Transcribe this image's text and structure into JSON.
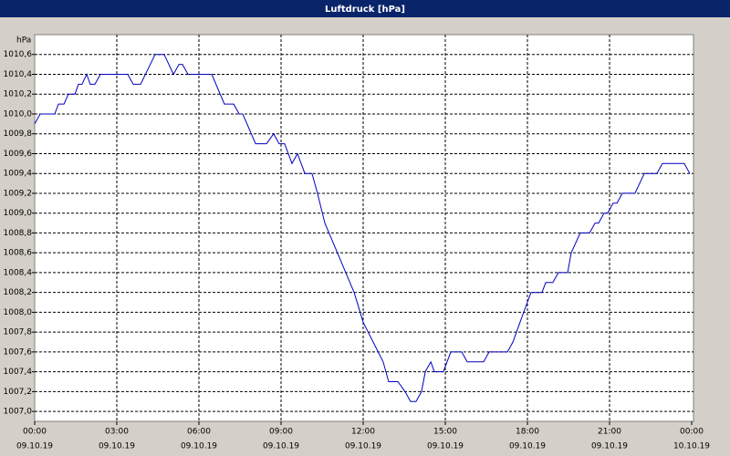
{
  "chart_data": {
    "type": "line",
    "title": "Luftdruck [hPa]",
    "y_unit": "hPa",
    "color": "#0000c0",
    "grid": true,
    "x": [
      0,
      0.2,
      0.73,
      0.87,
      1.07,
      1.23,
      1.47,
      1.6,
      1.73,
      1.9,
      2.03,
      2.2,
      2.4,
      3.4,
      3.6,
      3.87,
      4.4,
      4.73,
      5.07,
      5.27,
      5.4,
      5.6,
      6.47,
      6.93,
      7.27,
      7.47,
      7.6,
      8.07,
      8.47,
      8.73,
      8.93,
      9.13,
      9.4,
      9.6,
      9.87,
      10.13,
      10.33,
      10.6,
      11.67,
      12,
      12.73,
      12.93,
      13.27,
      13.53,
      13.73,
      13.93,
      14.13,
      14.27,
      14.47,
      14.6,
      14.93,
      15.2,
      15.6,
      15.8,
      16.4,
      16.6,
      17.27,
      17.47,
      17.73,
      18.13,
      18.53,
      18.67,
      18.93,
      19.13,
      19.47,
      19.6,
      19.93,
      20.27,
      20.47,
      20.6,
      20.8,
      20.93,
      21.13,
      21.27,
      21.47,
      21.93,
      22.27,
      22.73,
      22.93,
      23.73,
      23.93
    ],
    "values": [
      1009.9,
      1010.0,
      1010.0,
      1010.1,
      1010.1,
      1010.2,
      1010.2,
      1010.3,
      1010.3,
      1010.4,
      1010.3,
      1010.3,
      1010.4,
      1010.4,
      1010.3,
      1010.3,
      1010.6,
      1010.6,
      1010.4,
      1010.5,
      1010.5,
      1010.4,
      1010.4,
      1010.1,
      1010.1,
      1010.0,
      1010.0,
      1009.7,
      1009.7,
      1009.8,
      1009.7,
      1009.7,
      1009.5,
      1009.6,
      1009.4,
      1009.4,
      1009.2,
      1008.9,
      1008.2,
      1007.9,
      1007.5,
      1007.3,
      1007.3,
      1007.2,
      1007.1,
      1007.1,
      1007.2,
      1007.4,
      1007.5,
      1007.4,
      1007.4,
      1007.6,
      1007.6,
      1007.5,
      1007.5,
      1007.6,
      1007.6,
      1007.7,
      1007.9,
      1008.2,
      1008.2,
      1008.3,
      1008.3,
      1008.4,
      1008.4,
      1008.6,
      1008.8,
      1008.8,
      1008.9,
      1008.9,
      1009.0,
      1009.0,
      1009.1,
      1009.1,
      1009.2,
      1009.2,
      1009.4,
      1009.4,
      1009.5,
      1009.5,
      1009.4
    ],
    "xlim": [
      0,
      24
    ],
    "xticks": [
      {
        "value": 0,
        "label": "00:00"
      },
      {
        "value": 3,
        "label": "03:00"
      },
      {
        "value": 6,
        "label": "06:00"
      },
      {
        "value": 9,
        "label": "09:00"
      },
      {
        "value": 12,
        "label": "12:00"
      },
      {
        "value": 15,
        "label": "15:00"
      },
      {
        "value": 18,
        "label": "18:00"
      },
      {
        "value": 21,
        "label": "21:00"
      },
      {
        "value": 24,
        "label": "00:00"
      }
    ],
    "xtick_dates": [
      "09.10.19",
      "09.10.19",
      "09.10.19",
      "09.10.19",
      "09.10.19",
      "09.10.19",
      "09.10.19",
      "09.10.19",
      "10.10.19"
    ],
    "ylim": [
      1006.9,
      1010.8
    ],
    "yticks": [
      {
        "value": 1007.0,
        "label": "1007,0"
      },
      {
        "value": 1007.2,
        "label": "1007,2"
      },
      {
        "value": 1007.4,
        "label": "1007,4"
      },
      {
        "value": 1007.6,
        "label": "1007,6"
      },
      {
        "value": 1007.8,
        "label": "1007,8"
      },
      {
        "value": 1008.0,
        "label": "1008,0"
      },
      {
        "value": 1008.2,
        "label": "1008,2"
      },
      {
        "value": 1008.4,
        "label": "1008,4"
      },
      {
        "value": 1008.6,
        "label": "1008,6"
      },
      {
        "value": 1008.8,
        "label": "1008,8"
      },
      {
        "value": 1009.0,
        "label": "1009,0"
      },
      {
        "value": 1009.2,
        "label": "1009,2"
      },
      {
        "value": 1009.4,
        "label": "1009,4"
      },
      {
        "value": 1009.6,
        "label": "1009,6"
      },
      {
        "value": 1009.8,
        "label": "1009,8"
      },
      {
        "value": 1010.0,
        "label": "1010,0"
      },
      {
        "value": 1010.2,
        "label": "1010,2"
      },
      {
        "value": 1010.4,
        "label": "1010,4"
      },
      {
        "value": 1010.6,
        "label": "1010,6"
      }
    ]
  }
}
